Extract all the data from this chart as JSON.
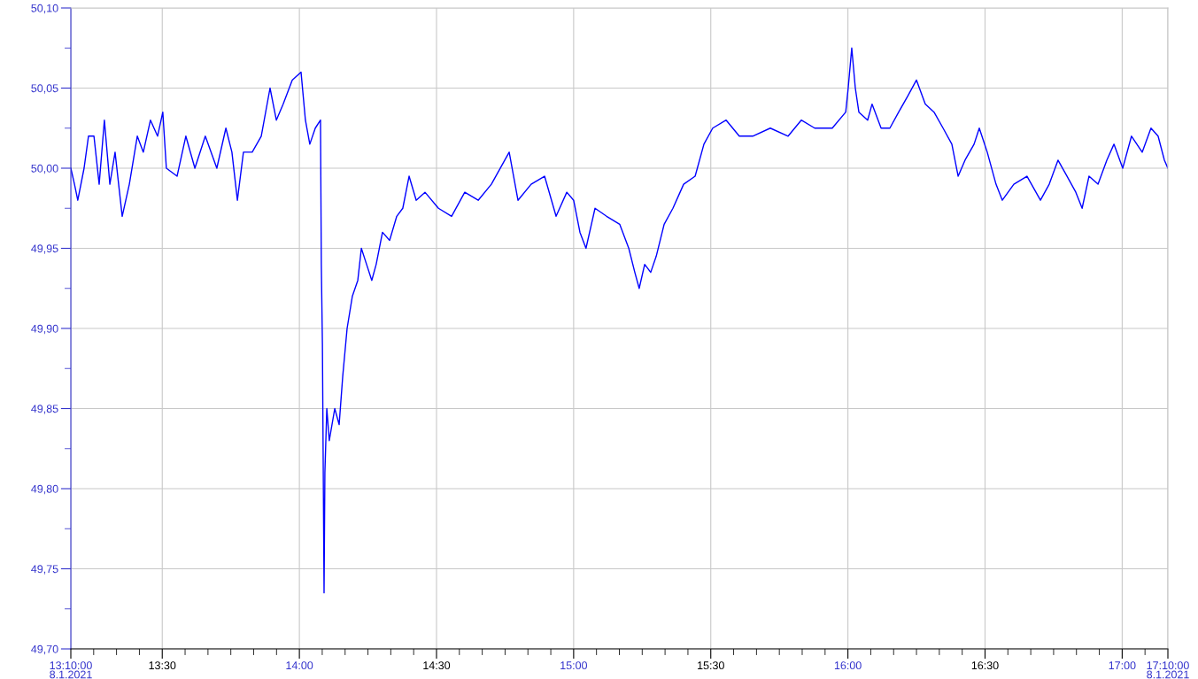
{
  "chart_data": {
    "type": "line",
    "grid": true,
    "xlim": [
      13.1667,
      17.1667
    ],
    "ylim": [
      49.7,
      50.1
    ],
    "xticks": [
      {
        "value": 13.1667,
        "label": "13:10:00\n8.1.2021"
      },
      {
        "value": 13.25,
        "label": null
      },
      {
        "value": 13.3333,
        "label": null
      },
      {
        "value": 13.4167,
        "label": null
      },
      {
        "value": 13.5,
        "label": "13:30"
      },
      {
        "value": 13.5833,
        "label": null
      },
      {
        "value": 13.6667,
        "label": null
      },
      {
        "value": 13.75,
        "label": null
      },
      {
        "value": 13.8333,
        "label": null
      },
      {
        "value": 13.9167,
        "label": null
      },
      {
        "value": 14.0,
        "label": "14:00"
      },
      {
        "value": 14.0833,
        "label": null
      },
      {
        "value": 14.1667,
        "label": null
      },
      {
        "value": 14.25,
        "label": null
      },
      {
        "value": 14.3333,
        "label": null
      },
      {
        "value": 14.4167,
        "label": null
      },
      {
        "value": 14.5,
        "label": "14:30"
      },
      {
        "value": 14.5833,
        "label": null
      },
      {
        "value": 14.6667,
        "label": null
      },
      {
        "value": 14.75,
        "label": null
      },
      {
        "value": 14.8333,
        "label": null
      },
      {
        "value": 14.9167,
        "label": null
      },
      {
        "value": 15.0,
        "label": "15:00"
      },
      {
        "value": 15.0833,
        "label": null
      },
      {
        "value": 15.1667,
        "label": null
      },
      {
        "value": 15.25,
        "label": null
      },
      {
        "value": 15.3333,
        "label": null
      },
      {
        "value": 15.4167,
        "label": null
      },
      {
        "value": 15.5,
        "label": "15:30"
      },
      {
        "value": 15.5833,
        "label": null
      },
      {
        "value": 15.6667,
        "label": null
      },
      {
        "value": 15.75,
        "label": null
      },
      {
        "value": 15.8333,
        "label": null
      },
      {
        "value": 15.9167,
        "label": null
      },
      {
        "value": 16.0,
        "label": "16:00"
      },
      {
        "value": 16.0833,
        "label": null
      },
      {
        "value": 16.1667,
        "label": null
      },
      {
        "value": 16.25,
        "label": null
      },
      {
        "value": 16.3333,
        "label": null
      },
      {
        "value": 16.4167,
        "label": null
      },
      {
        "value": 16.5,
        "label": "16:30"
      },
      {
        "value": 16.5833,
        "label": null
      },
      {
        "value": 16.6667,
        "label": null
      },
      {
        "value": 16.75,
        "label": null
      },
      {
        "value": 16.8333,
        "label": null
      },
      {
        "value": 16.9167,
        "label": null
      },
      {
        "value": 17.0,
        "label": "17:00"
      },
      {
        "value": 17.0833,
        "label": null
      },
      {
        "value": 17.1667,
        "label": "17:10:00\n8.1.2021"
      }
    ],
    "yticks": [
      {
        "value": 49.7,
        "label": "49,70"
      },
      {
        "value": 49.725,
        "label": null
      },
      {
        "value": 49.75,
        "label": "49,75"
      },
      {
        "value": 49.775,
        "label": null
      },
      {
        "value": 49.8,
        "label": "49,80"
      },
      {
        "value": 49.825,
        "label": null
      },
      {
        "value": 49.85,
        "label": "49,85"
      },
      {
        "value": 49.875,
        "label": null
      },
      {
        "value": 49.9,
        "label": "49,90"
      },
      {
        "value": 49.925,
        "label": null
      },
      {
        "value": 49.95,
        "label": "49,95"
      },
      {
        "value": 49.975,
        "label": null
      },
      {
        "value": 50.0,
        "label": "50,00"
      },
      {
        "value": 50.025,
        "label": null
      },
      {
        "value": 50.05,
        "label": "50,05"
      },
      {
        "value": 50.075,
        "label": null
      },
      {
        "value": 50.1,
        "label": "50,10"
      }
    ],
    "series": [
      {
        "color": "#0000ff",
        "x": [
          13.1667,
          13.18,
          13.192,
          13.215,
          13.231,
          13.251,
          13.27,
          13.289,
          13.309,
          13.328,
          13.354,
          13.38,
          13.409,
          13.431,
          13.457,
          13.483,
          13.502,
          13.515,
          13.554,
          13.586,
          13.619,
          13.657,
          13.699,
          13.732,
          13.754,
          13.774,
          13.796,
          13.828,
          13.861,
          13.893,
          13.916,
          13.941,
          13.974,
          14.006,
          14.022,
          14.038,
          14.058,
          14.077,
          14.08,
          14.084,
          14.09,
          14.093,
          14.1,
          14.109,
          14.129,
          14.145,
          14.158,
          14.174,
          14.193,
          14.213,
          14.226,
          14.245,
          14.264,
          14.28,
          14.303,
          14.329,
          14.355,
          14.377,
          14.4,
          14.426,
          14.458,
          14.507,
          14.555,
          14.603,
          14.652,
          14.7,
          14.765,
          14.797,
          14.845,
          14.894,
          14.936,
          14.975,
          15.0,
          15.023,
          15.045,
          15.078,
          15.12,
          15.168,
          15.201,
          15.223,
          15.239,
          15.259,
          15.281,
          15.301,
          15.33,
          15.362,
          15.401,
          15.443,
          15.475,
          15.507,
          15.556,
          15.604,
          15.653,
          15.717,
          15.782,
          15.83,
          15.879,
          15.943,
          15.992,
          16.001,
          16.014,
          16.027,
          16.04,
          16.072,
          16.088,
          16.121,
          16.153,
          16.185,
          16.218,
          16.25,
          16.282,
          16.314,
          16.347,
          16.379,
          16.402,
          16.427,
          16.46,
          16.479,
          16.508,
          16.54,
          16.563,
          16.605,
          16.653,
          16.702,
          16.734,
          16.766,
          16.799,
          16.831,
          16.854,
          16.879,
          16.912,
          16.944,
          16.97,
          17.002,
          17.034,
          17.073,
          17.105,
          17.131,
          17.154,
          17.1667
        ],
        "values": [
          50.0,
          49.99,
          49.98,
          50.0,
          50.02,
          50.02,
          49.99,
          50.03,
          49.99,
          50.01,
          49.97,
          49.99,
          50.02,
          50.01,
          50.03,
          50.02,
          50.035,
          50.0,
          49.995,
          50.02,
          50.0,
          50.02,
          50.0,
          50.025,
          50.01,
          49.98,
          50.01,
          50.01,
          50.02,
          50.05,
          50.03,
          50.04,
          50.055,
          50.06,
          50.03,
          50.015,
          50.025,
          50.03,
          49.94,
          49.89,
          49.735,
          49.81,
          49.85,
          49.83,
          49.85,
          49.84,
          49.87,
          49.9,
          49.92,
          49.93,
          49.95,
          49.94,
          49.93,
          49.94,
          49.96,
          49.955,
          49.97,
          49.975,
          49.995,
          49.98,
          49.985,
          49.975,
          49.97,
          49.985,
          49.98,
          49.99,
          50.01,
          49.98,
          49.99,
          49.995,
          49.97,
          49.985,
          49.98,
          49.96,
          49.95,
          49.975,
          49.97,
          49.965,
          49.95,
          49.935,
          49.925,
          49.94,
          49.935,
          49.945,
          49.965,
          49.975,
          49.99,
          49.995,
          50.015,
          50.025,
          50.03,
          50.02,
          50.02,
          50.025,
          50.02,
          50.03,
          50.025,
          50.025,
          50.035,
          50.05,
          50.075,
          50.05,
          50.035,
          50.03,
          50.04,
          50.025,
          50.025,
          50.035,
          50.045,
          50.055,
          50.04,
          50.035,
          50.025,
          50.015,
          49.995,
          50.005,
          50.015,
          50.025,
          50.01,
          49.99,
          49.98,
          49.99,
          49.995,
          49.98,
          49.99,
          50.005,
          49.995,
          49.985,
          49.975,
          49.995,
          49.99,
          50.005,
          50.015,
          50.0,
          50.02,
          50.01,
          50.025,
          50.02,
          50.005,
          50.0
        ]
      }
    ]
  }
}
